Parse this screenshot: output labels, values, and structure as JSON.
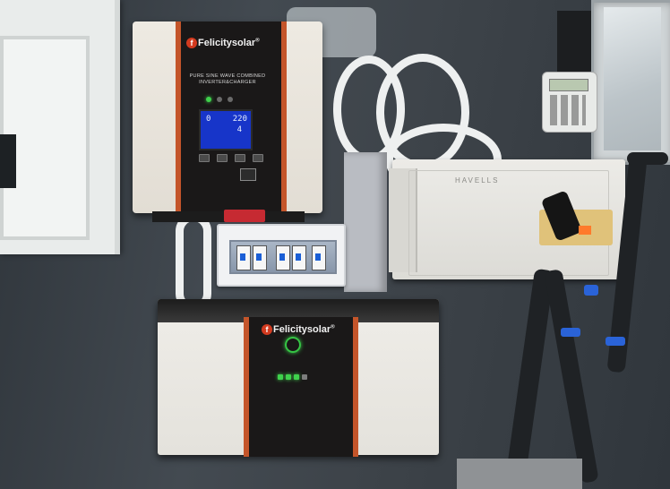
{
  "photo": {
    "subject": "Solar inverter and battery installation on a wall"
  },
  "inverter": {
    "brand": "Felicitysolar",
    "brand_mark": "®",
    "subtitle_line1": "PURE SINE WAVE COMBINED",
    "subtitle_line2": "INVERTER&CHARGER",
    "lcd_left": "0",
    "lcd_right": "220",
    "lcd_bottom": "4"
  },
  "distribution_box": {
    "label": "HAVELLS"
  },
  "battery": {
    "brand": "Felicitysolar",
    "brand_mark": "®",
    "charge_bars_lit": 3,
    "charge_bars_total": 4
  },
  "colors": {
    "accent_orange": "#c4552a",
    "panel_black": "#1a1818",
    "lcd_blue": "#1735c9",
    "led_green": "#3fd14c"
  }
}
